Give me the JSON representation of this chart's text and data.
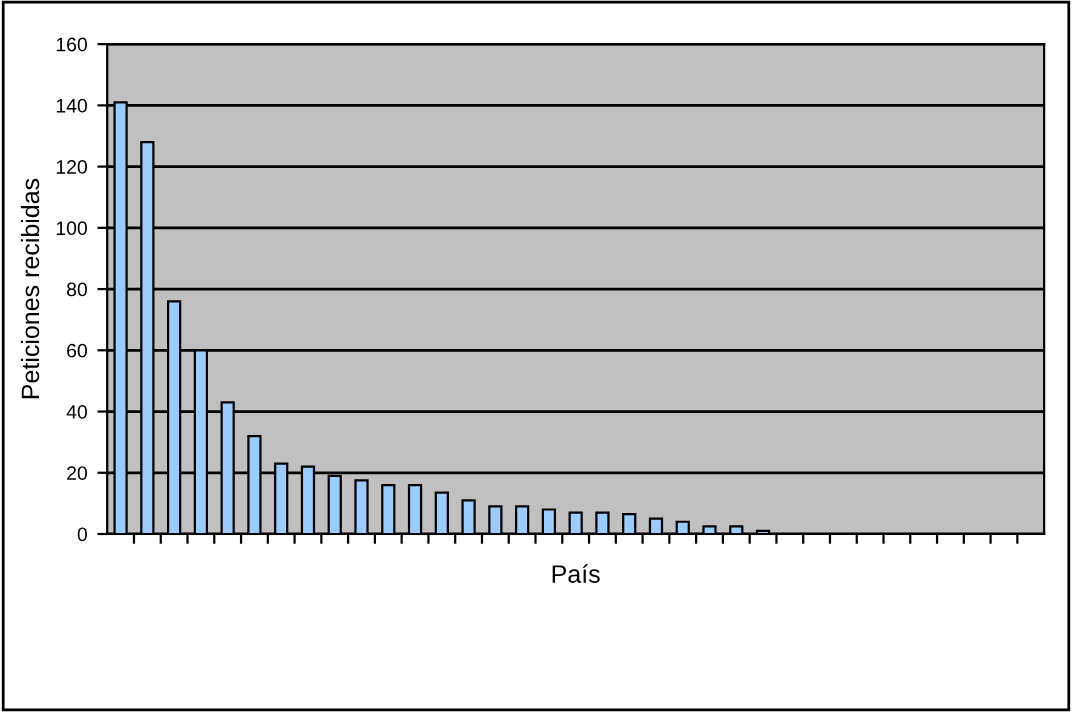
{
  "chart_data": {
    "type": "bar",
    "xlabel": "País",
    "ylabel": "Peticiones recibidas",
    "categories": [
      null,
      null,
      null,
      null,
      null,
      null,
      null,
      null,
      null,
      null,
      null,
      null,
      null,
      null,
      null,
      null,
      null,
      null,
      null,
      null,
      null,
      null,
      null,
      null,
      null,
      null,
      null,
      null,
      null,
      null,
      null,
      null,
      null,
      null,
      null
    ],
    "values": [
      141,
      128,
      76,
      60,
      43,
      32,
      23,
      22,
      19,
      17.5,
      16,
      16,
      13.5,
      11,
      9,
      9,
      8,
      7,
      7,
      6.5,
      5,
      4,
      2.5,
      2.5,
      1,
      null,
      null,
      null,
      null,
      null,
      null,
      null,
      null,
      null,
      null
    ],
    "color": "#99ccff",
    "ylim": [
      0,
      160
    ],
    "yticks": [
      0,
      20,
      40,
      60,
      80,
      100,
      120,
      140,
      160
    ],
    "grid": "y"
  }
}
